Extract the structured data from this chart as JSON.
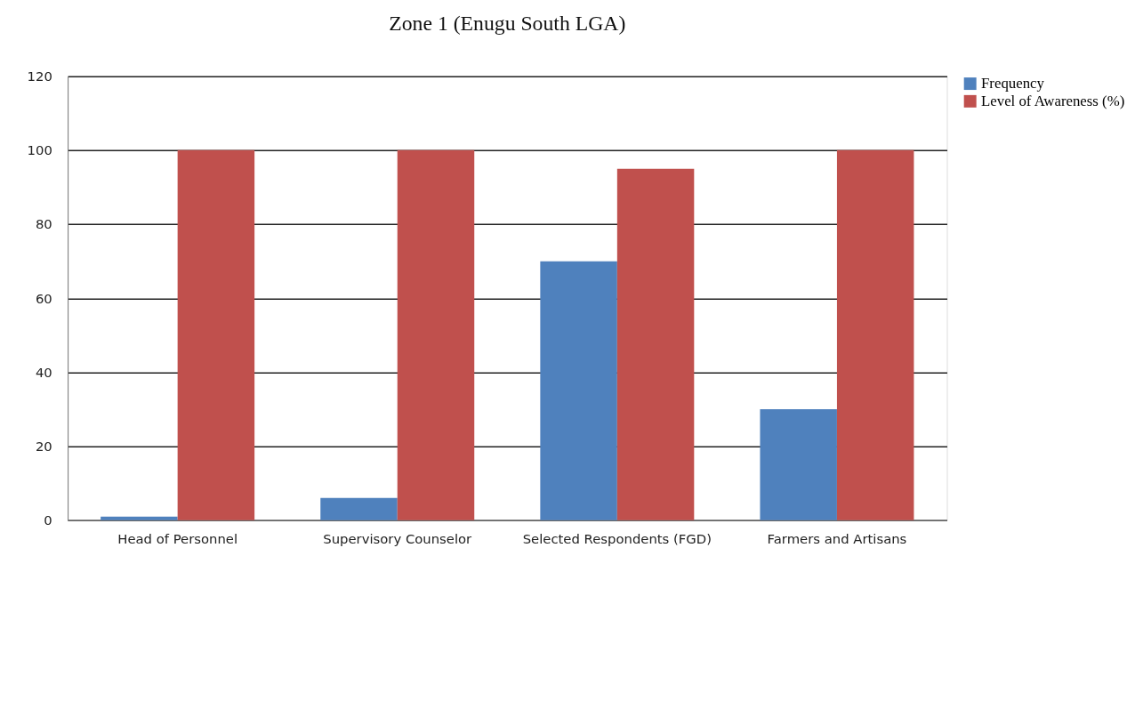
{
  "chart_data": {
    "type": "bar",
    "title": "Zone 1 (Enugu South LGA)",
    "categories": [
      "Head of Personnel",
      "Supervisory Counselor",
      "Selected Respondents (FGD)",
      "Farmers and Artisans"
    ],
    "series": [
      {
        "name": "Frequency",
        "color": "#4f81bd",
        "values": [
          1,
          6,
          70,
          30
        ]
      },
      {
        "name": "Level of Awareness (%)",
        "color": "#c0504d",
        "values": [
          100,
          100,
          95,
          100
        ]
      }
    ],
    "ylim": [
      0,
      120
    ],
    "yticks": [
      0,
      20,
      40,
      60,
      80,
      100,
      120
    ],
    "grid": "y",
    "legend": "right"
  }
}
